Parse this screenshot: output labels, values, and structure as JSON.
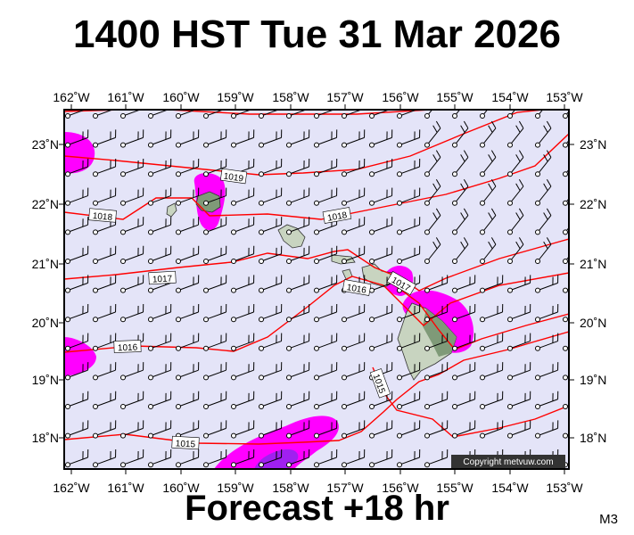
{
  "title": "1400 HST Tue 31 Mar 2026",
  "subtitle": "Forecast +18 hr",
  "model_label": "M3",
  "copyright": "Copyright metvuw.com",
  "colors": {
    "ocean": "#e4e4f8",
    "isobar": "#ff0000",
    "rain_light": "#ff00ff",
    "rain_heavy": "#a020f0",
    "land": "#c8d4c0",
    "land_dark": "#7f9a78"
  },
  "map": {
    "lon_labels": [
      "162˚W",
      "161˚W",
      "160˚W",
      "159˚W",
      "158˚W",
      "157˚W",
      "156˚W",
      "155˚W",
      "154˚W",
      "153˚W"
    ],
    "lat_labels": [
      "23˚N",
      "22˚N",
      "21˚N",
      "20˚N",
      "19˚N",
      "18˚N"
    ],
    "isobar_labels": [
      {
        "text": "1019"
      },
      {
        "text": "1018"
      },
      {
        "text": "1018"
      },
      {
        "text": "1017"
      },
      {
        "text": "1017"
      },
      {
        "text": "1016"
      },
      {
        "text": "1016"
      },
      {
        "text": "1015"
      },
      {
        "text": "1015"
      }
    ]
  }
}
